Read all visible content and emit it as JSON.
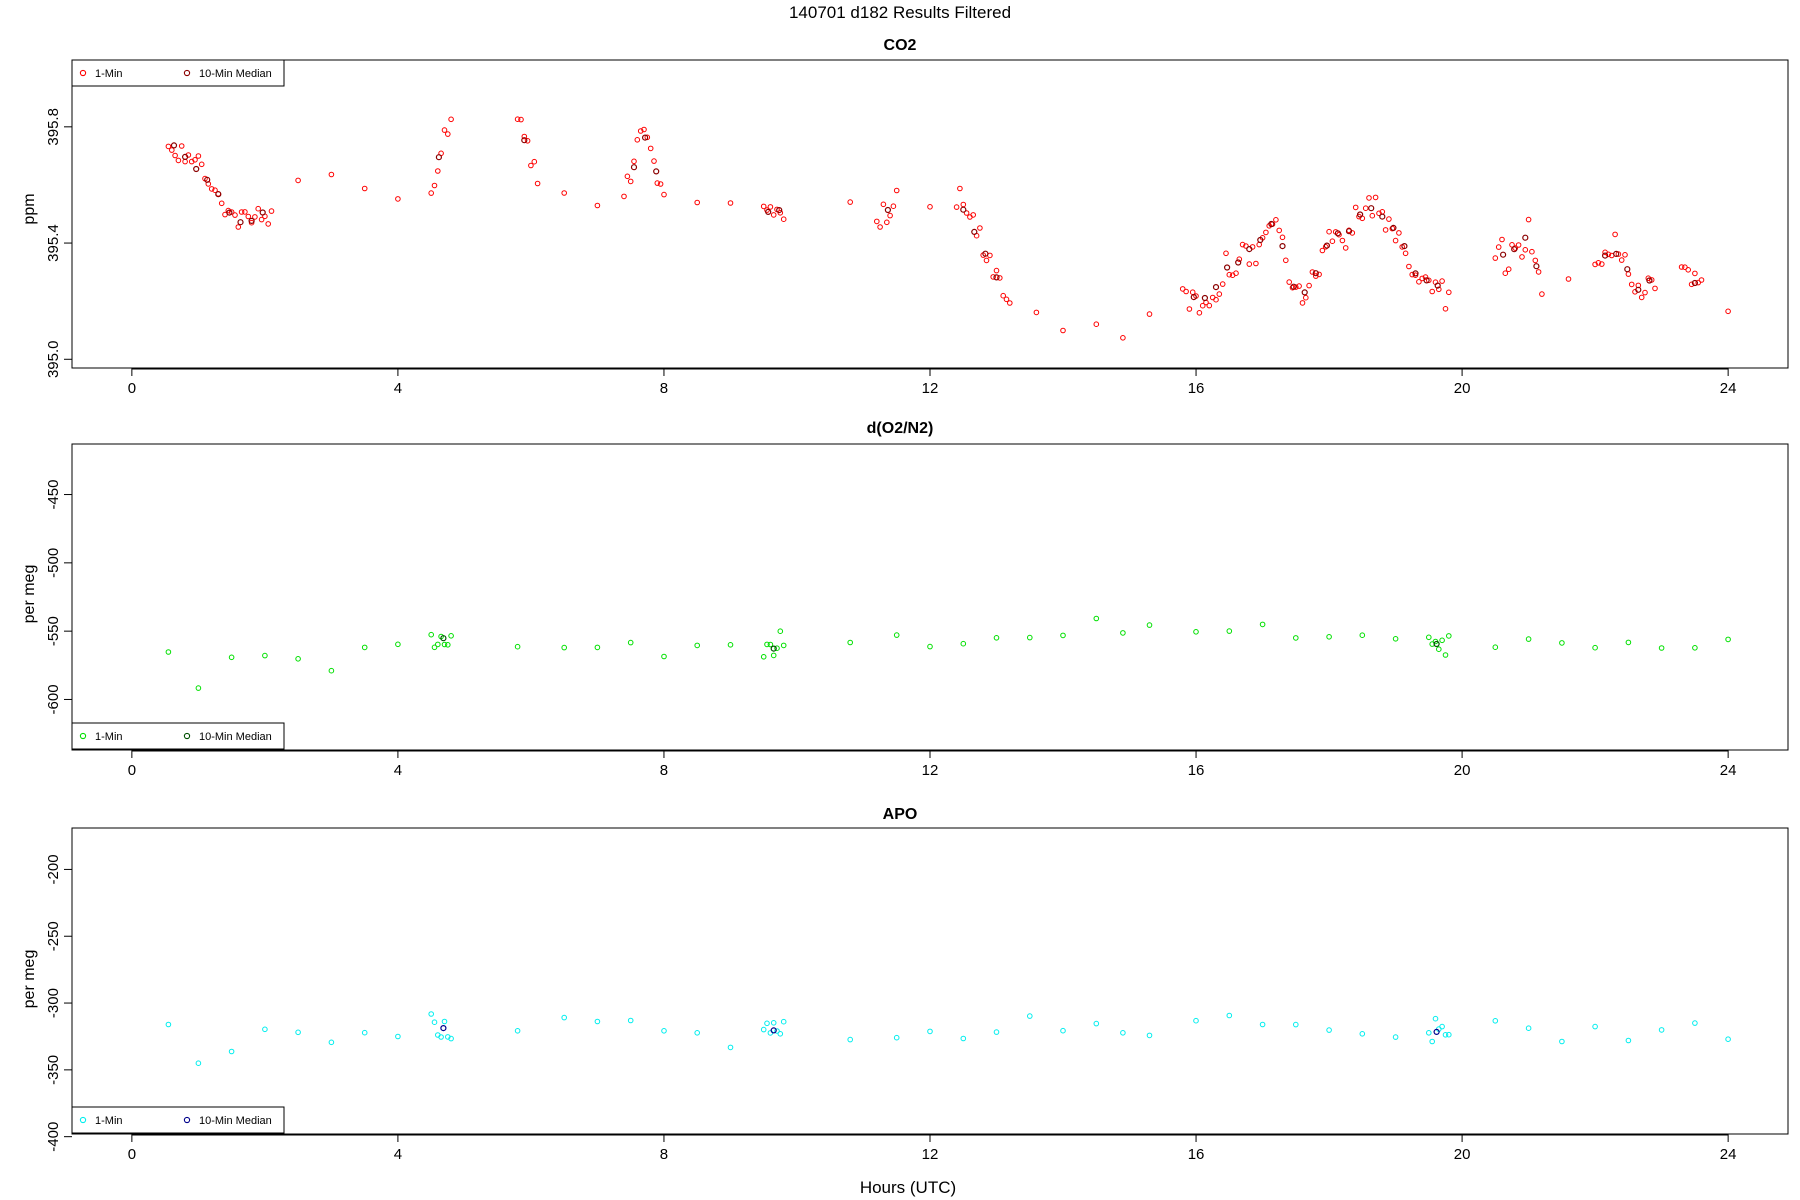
{
  "figure": {
    "title": "140701   d182   Results Filtered",
    "xlabel": "Hours (UTC)"
  },
  "colors": {
    "co2_points": "#ff0000",
    "co2_median": "#8b0000",
    "o2n2_points": "#00e000",
    "o2n2_median": "#005000",
    "apo_points": "#00eeee",
    "apo_median": "#00008b",
    "axis": "#000000"
  },
  "chart_data": [
    {
      "type": "scatter",
      "title": "CO2",
      "ylabel": "ppm",
      "xlabel": "",
      "xlim": [
        -0.9,
        24.9
      ],
      "ylim": [
        394.97,
        396.03
      ],
      "xticks": [
        0,
        4,
        8,
        12,
        16,
        20,
        24
      ],
      "yticks": [
        395.0,
        395.4,
        395.8
      ],
      "ytick_labels": [
        "395.0",
        "395.4",
        "395.8"
      ],
      "grid": false,
      "legend": {
        "position": "top-left",
        "entries": [
          "1-Min",
          "10-Min Median"
        ]
      },
      "series": [
        {
          "name": "1-Min",
          "marker": "open-circle",
          "color": "#ff0000",
          "profile": [
            [
              0.55,
              395.76
            ],
            [
              0.8,
              395.7
            ],
            [
              1.1,
              395.64
            ],
            [
              1.3,
              395.56
            ],
            [
              1.6,
              395.46
            ],
            [
              1.8,
              395.47
            ],
            [
              2.1,
              395.54
            ],
            [
              2.5,
              395.59
            ],
            [
              3.0,
              395.62
            ],
            [
              3.5,
              395.56
            ],
            [
              4.0,
              395.57
            ],
            [
              4.5,
              395.58
            ],
            [
              4.8,
              395.84
            ],
            [
              5.8,
              395.82
            ],
            [
              6.1,
              395.65
            ],
            [
              6.5,
              395.58
            ],
            [
              7.0,
              395.53
            ],
            [
              7.4,
              395.58
            ],
            [
              7.7,
              395.78
            ],
            [
              8.0,
              395.56
            ],
            [
              8.5,
              395.55
            ],
            [
              9.0,
              395.53
            ],
            [
              9.5,
              395.5
            ],
            [
              9.8,
              395.52
            ],
            [
              10.8,
              395.56
            ],
            [
              11.2,
              395.45
            ],
            [
              11.5,
              395.55
            ],
            [
              12.0,
              395.5
            ],
            [
              12.4,
              395.53
            ],
            [
              12.7,
              395.46
            ],
            [
              12.9,
              395.33
            ],
            [
              13.2,
              395.18
            ],
            [
              13.6,
              395.13
            ],
            [
              14.0,
              395.11
            ],
            [
              14.5,
              395.1
            ],
            [
              14.9,
              395.05
            ],
            [
              15.3,
              395.21
            ],
            [
              15.8,
              395.22
            ],
            [
              16.0,
              395.2
            ],
            [
              16.3,
              395.27
            ],
            [
              16.6,
              395.33
            ],
            [
              16.9,
              395.4
            ],
            [
              17.2,
              395.48
            ],
            [
              17.4,
              395.25
            ],
            [
              17.6,
              395.2
            ],
            [
              17.8,
              395.3
            ],
            [
              18.0,
              395.42
            ],
            [
              18.3,
              395.44
            ],
            [
              18.6,
              395.52
            ],
            [
              18.9,
              395.45
            ],
            [
              19.2,
              395.35
            ],
            [
              19.5,
              395.25
            ],
            [
              19.8,
              395.22
            ],
            [
              20.5,
              395.36
            ],
            [
              20.8,
              395.36
            ],
            [
              21.0,
              395.45
            ],
            [
              21.2,
              395.22
            ],
            [
              21.6,
              395.27
            ],
            [
              22.0,
              395.3
            ],
            [
              22.3,
              395.4
            ],
            [
              22.6,
              395.25
            ],
            [
              22.9,
              395.28
            ],
            [
              23.3,
              395.28
            ],
            [
              23.6,
              395.25
            ],
            [
              24.0,
              395.22
            ]
          ],
          "noise": 0.055,
          "max_gap": 0.35
        },
        {
          "name": "10-Min Median",
          "marker": "open-circle",
          "color": "#8b0000",
          "profile": [],
          "noise": 0,
          "max_gap": 0.35
        }
      ]
    },
    {
      "type": "scatter",
      "title": "d(O2/N2)",
      "ylabel": "per meg",
      "xlabel": "",
      "xlim": [
        -0.9,
        24.9
      ],
      "ylim": [
        -637,
        -413
      ],
      "xticks": [
        0,
        4,
        8,
        12,
        16,
        20,
        24
      ],
      "yticks": [
        -600,
        -550,
        -500,
        -450
      ],
      "ytick_labels": [
        "-600",
        "-550",
        "-500",
        "-450"
      ],
      "grid": false,
      "legend": {
        "position": "bottom-left",
        "entries": [
          "1-Min",
          "10-Min Median"
        ]
      },
      "series": [
        {
          "name": "1-Min",
          "marker": "open-circle",
          "color": "#00e000",
          "profile": [
            [
              0.55,
              -563
            ],
            [
              1.0,
              -580
            ],
            [
              1.5,
              -570
            ],
            [
              2.0,
              -568
            ],
            [
              2.5,
              -568
            ],
            [
              3.0,
              -568
            ],
            [
              3.5,
              -565
            ],
            [
              4.0,
              -560
            ],
            [
              4.5,
              -557
            ],
            [
              4.8,
              -560
            ],
            [
              5.8,
              -560
            ],
            [
              6.5,
              -562
            ],
            [
              7.0,
              -560
            ],
            [
              7.5,
              -560
            ],
            [
              8.0,
              -562
            ],
            [
              8.5,
              -563
            ],
            [
              9.0,
              -563
            ],
            [
              9.5,
              -562
            ],
            [
              9.8,
              -560
            ],
            [
              10.8,
              -563
            ],
            [
              11.5,
              -560
            ],
            [
              12.0,
              -558
            ],
            [
              12.5,
              -557
            ],
            [
              13.0,
              -556
            ],
            [
              13.5,
              -556
            ],
            [
              14.0,
              -554
            ],
            [
              14.5,
              -552
            ],
            [
              14.9,
              -552
            ],
            [
              15.3,
              -553
            ],
            [
              16.0,
              -553
            ],
            [
              16.5,
              -553
            ],
            [
              17.0,
              -552
            ],
            [
              17.5,
              -555
            ],
            [
              18.0,
              -556
            ],
            [
              18.5,
              -557
            ],
            [
              19.0,
              -558
            ],
            [
              19.5,
              -558
            ],
            [
              19.8,
              -559
            ],
            [
              20.5,
              -557
            ],
            [
              21.0,
              -557
            ],
            [
              21.5,
              -557
            ],
            [
              22.0,
              -558
            ],
            [
              22.5,
              -559
            ],
            [
              23.0,
              -560
            ],
            [
              23.5,
              -560
            ],
            [
              24.0,
              -560
            ]
          ],
          "noise": 9,
          "max_gap": 0.35
        },
        {
          "name": "10-Min Median",
          "marker": "open-circle",
          "color": "#005000",
          "profile": [],
          "noise": 0,
          "max_gap": 0.35
        }
      ]
    },
    {
      "type": "scatter",
      "title": "APO",
      "ylabel": "per meg",
      "xlabel": "Hours (UTC)",
      "xlim": [
        -0.9,
        24.9
      ],
      "ylim": [
        -398,
        -169
      ],
      "xticks": [
        0,
        4,
        8,
        12,
        16,
        20,
        24
      ],
      "yticks": [
        -400,
        -350,
        -300,
        -250,
        -200
      ],
      "ytick_labels": [
        "-400",
        "-350",
        "-300",
        "-250",
        "-200"
      ],
      "grid": false,
      "legend": {
        "position": "bottom-left",
        "entries": [
          "1-Min",
          "10-Min Median"
        ]
      },
      "series": [
        {
          "name": "1-Min",
          "marker": "open-circle",
          "color": "#00eeee",
          "profile": [
            [
              0.55,
              -320
            ],
            [
              1.0,
              -340
            ],
            [
              1.5,
              -333
            ],
            [
              2.0,
              -330
            ],
            [
              2.5,
              -330
            ],
            [
              3.0,
              -333
            ],
            [
              3.5,
              -328
            ],
            [
              4.0,
              -320
            ],
            [
              4.5,
              -318
            ],
            [
              4.8,
              -320
            ],
            [
              5.8,
              -318
            ],
            [
              6.5,
              -320
            ],
            [
              7.0,
              -318
            ],
            [
              7.5,
              -318
            ],
            [
              8.0,
              -322
            ],
            [
              8.5,
              -322
            ],
            [
              9.0,
              -322
            ],
            [
              9.5,
              -322
            ],
            [
              9.8,
              -318
            ],
            [
              10.8,
              -325
            ],
            [
              11.5,
              -322
            ],
            [
              12.0,
              -320
            ],
            [
              12.5,
              -320
            ],
            [
              13.0,
              -318
            ],
            [
              13.5,
              -318
            ],
            [
              14.0,
              -317
            ],
            [
              14.5,
              -315
            ],
            [
              14.9,
              -315
            ],
            [
              15.3,
              -318
            ],
            [
              16.0,
              -316
            ],
            [
              16.5,
              -315
            ],
            [
              17.0,
              -314
            ],
            [
              17.5,
              -317
            ],
            [
              18.0,
              -318
            ],
            [
              18.5,
              -320
            ],
            [
              19.0,
              -322
            ],
            [
              19.5,
              -322
            ],
            [
              19.8,
              -322
            ],
            [
              20.5,
              -320
            ],
            [
              21.0,
              -320
            ],
            [
              21.5,
              -320
            ],
            [
              22.0,
              -320
            ],
            [
              22.5,
              -322
            ],
            [
              23.0,
              -322
            ],
            [
              23.5,
              -322
            ],
            [
              24.0,
              -322
            ]
          ],
          "noise": 9,
          "max_gap": 0.35
        },
        {
          "name": "10-Min Median",
          "marker": "open-circle",
          "color": "#00008b",
          "profile": [],
          "noise": 0,
          "max_gap": 0.35
        }
      ]
    }
  ]
}
